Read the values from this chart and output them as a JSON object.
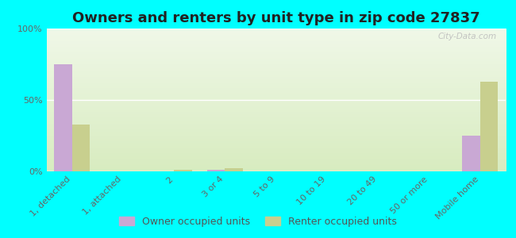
{
  "title": "Owners and renters by unit type in zip code 27837",
  "categories": [
    "1, detached",
    "1, attached",
    "2",
    "3 or 4",
    "5 to 9",
    "10 to 19",
    "20 to 49",
    "50 or more",
    "Mobile home"
  ],
  "owner_values": [
    75,
    0,
    0,
    1,
    0,
    0,
    0,
    0,
    25
  ],
  "renter_values": [
    33,
    0,
    1,
    2,
    0,
    0,
    0,
    0,
    63
  ],
  "owner_color": "#c9a8d4",
  "renter_color": "#c8cf8e",
  "background_color": "#00ffff",
  "plot_bg_top": "#d8ecc0",
  "plot_bg_bottom": "#f0f8e8",
  "ylabel_ticks": [
    "0%",
    "50%",
    "100%"
  ],
  "yticks": [
    0,
    50,
    100
  ],
  "ylim": [
    0,
    100
  ],
  "bar_width": 0.35,
  "title_fontsize": 13,
  "tick_fontsize": 8,
  "legend_fontsize": 9,
  "watermark": "City-Data.com"
}
